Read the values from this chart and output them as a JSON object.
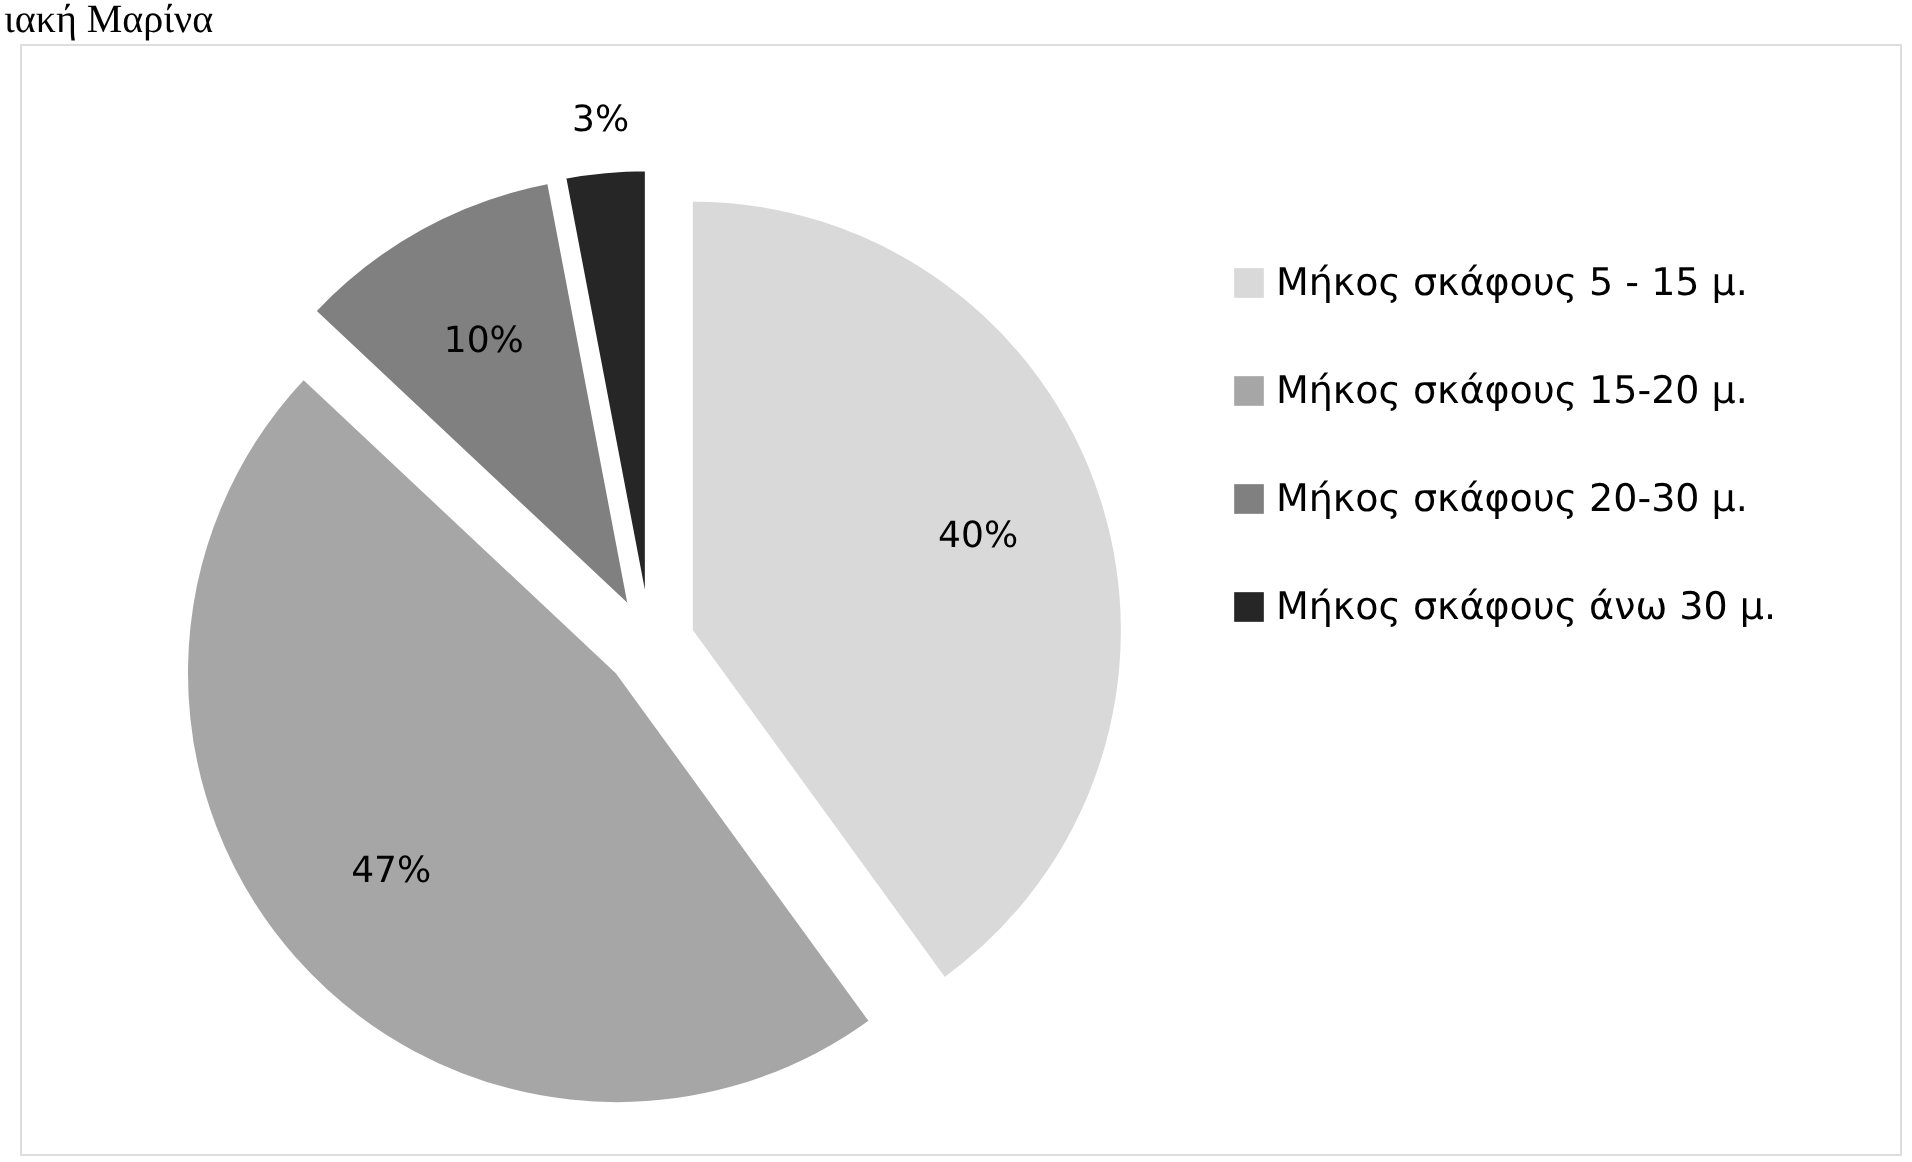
{
  "chart_data": {
    "type": "pie",
    "categories": [
      "Μήκος σκάφους 5 - 15 μ.",
      "Μήκος σκάφους 15-20 μ.",
      "Μήκος σκάφους 20-30 μ.",
      "Μήκος σκάφους άνω 30 μ."
    ],
    "values": [
      40,
      47,
      10,
      3
    ],
    "colors": [
      "#d9d9d9",
      "#a6a6a6",
      "#808080",
      "#262626"
    ],
    "value_labels": [
      "40%",
      "47%",
      "10%",
      "3%"
    ],
    "legend": "right",
    "annotations": [
      "ιακή Μαρίνα"
    ]
  }
}
